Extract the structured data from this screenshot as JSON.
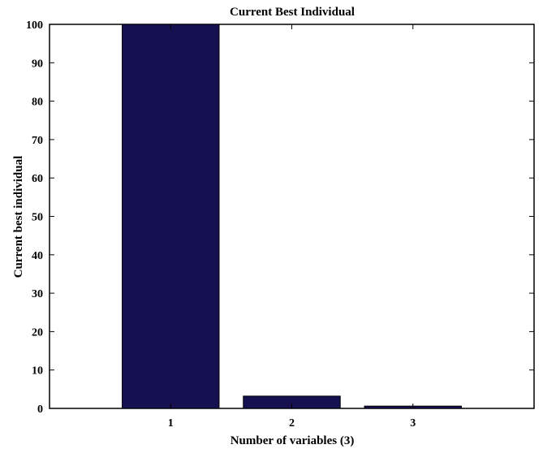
{
  "chart_data": {
    "type": "bar",
    "title": "Current Best Individual",
    "xlabel": "Number of variables (3)",
    "ylabel": "Current best individual",
    "categories": [
      "1",
      "2",
      "3"
    ],
    "values": [
      100,
      3.2,
      0.6
    ],
    "ylim": [
      0,
      100
    ],
    "yticks": [
      0,
      10,
      20,
      30,
      40,
      50,
      60,
      70,
      80,
      90,
      100
    ],
    "xlim": [
      0,
      4
    ],
    "grid": false,
    "legend": "none",
    "bar_color": "#15104f",
    "bar_edge_color": "#000000"
  }
}
